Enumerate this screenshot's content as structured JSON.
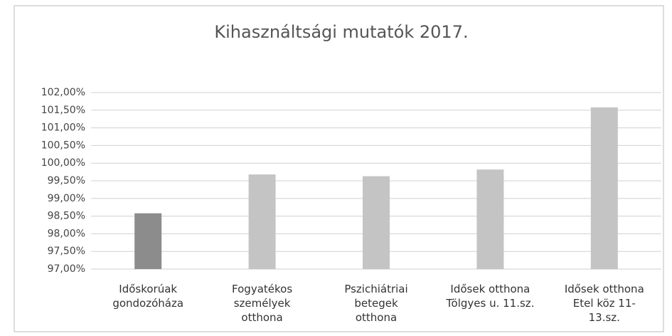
{
  "chart_data": {
    "type": "bar",
    "title": "Kihasználtsági mutatók 2017.",
    "categories": [
      "Időskorúak\ngondozóháza",
      "Fogyatékos\nszemélyek\notthona",
      "Pszichiátriai\nbetegek\notthona",
      "Idősek otthona\nTölgyes u. 11.sz.",
      "Idősek otthona\nEtel köz 11-\n13.sz."
    ],
    "values": [
      98.58,
      99.68,
      99.63,
      99.82,
      101.58
    ],
    "colors": [
      "#8c8c8c",
      "#c4c4c4",
      "#c4c4c4",
      "#c4c4c4",
      "#c4c4c4"
    ],
    "ylim": [
      97,
      102
    ],
    "yticks": [
      {
        "value": 97,
        "label": "97,00%"
      },
      {
        "value": 97.5,
        "label": "97,50%"
      },
      {
        "value": 98,
        "label": "98,00%"
      },
      {
        "value": 98.5,
        "label": "98,50%"
      },
      {
        "value": 99,
        "label": "99,00%"
      },
      {
        "value": 99.5,
        "label": "99,50%"
      },
      {
        "value": 100,
        "label": "100,00%"
      },
      {
        "value": 100.5,
        "label": "100,50%"
      },
      {
        "value": 101,
        "label": "101,00%"
      },
      {
        "value": 101.5,
        "label": "101,50%"
      },
      {
        "value": 102,
        "label": "102,00%"
      }
    ],
    "grid": true
  }
}
